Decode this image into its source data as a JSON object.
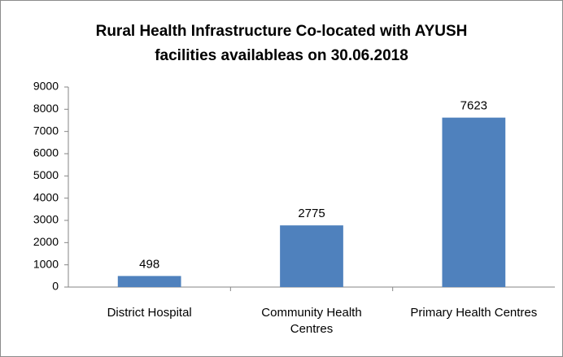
{
  "chart_data": {
    "type": "bar",
    "title": "Rural Health Infrastructure Co-located with AYUSH facilities availableas on 30.06.2018",
    "categories": [
      "District Hospital",
      "Community Health Centres",
      "Primary Health Centres"
    ],
    "values": [
      498,
      2775,
      7623
    ],
    "color": "#4f81bd",
    "ylim": [
      0,
      9000
    ],
    "yticks": [
      0,
      1000,
      2000,
      3000,
      4000,
      5000,
      6000,
      7000,
      8000,
      9000
    ],
    "grid": false
  }
}
